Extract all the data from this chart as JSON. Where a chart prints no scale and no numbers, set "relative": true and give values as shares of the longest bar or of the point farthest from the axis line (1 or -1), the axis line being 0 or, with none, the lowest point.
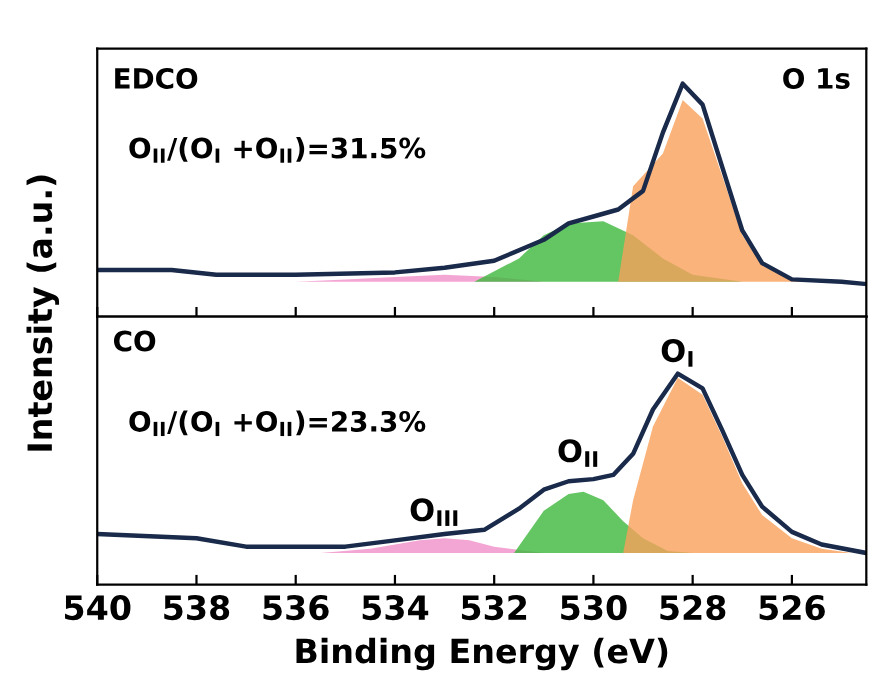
{
  "chart_data": [
    {
      "type": "line",
      "relative": true,
      "ylabel": "Intensity (a.u.)",
      "xlim": [
        540,
        524.5
      ],
      "xticks": [
        540,
        538,
        536,
        534,
        532,
        530,
        528,
        526
      ],
      "tick_labels": false,
      "grid": false,
      "legend": false,
      "annotations": [
        "EDCO",
        "O 1s",
        "O$_{II}$/(O$_{I}$ +O$_{II}$)=31.5%"
      ],
      "series": [
        {
          "type": "area",
          "color": "#f08ec8",
          "x": [
            536,
            535,
            534,
            533,
            532,
            531
          ],
          "values": [
            0.15,
            0.16,
            0.17,
            0.18,
            0.17,
            0.15
          ]
        },
        {
          "type": "area",
          "color": "#3cb83c",
          "x": [
            532.4,
            531.5,
            531,
            530.5,
            529.8,
            529.2,
            528.6,
            528,
            527
          ],
          "values": [
            0.15,
            0.25,
            0.35,
            0.4,
            0.41,
            0.35,
            0.25,
            0.18,
            0.15
          ]
        },
        {
          "type": "area",
          "color": "#f7a05a",
          "x": [
            529.5,
            529.2,
            528.6,
            528.2,
            527.8,
            527.4,
            527,
            526.6,
            526,
            525.4
          ],
          "values": [
            0.15,
            0.56,
            0.7,
            0.93,
            0.85,
            0.6,
            0.35,
            0.22,
            0.16,
            0.15
          ]
        },
        {
          "color": "#1a2a4a",
          "x": [
            540,
            538.5,
            537.6,
            536,
            534,
            533,
            532,
            531,
            530.5,
            530,
            529.5,
            529,
            528.6,
            528.2,
            527.8,
            527.4,
            527,
            526.6,
            526,
            525,
            524.5
          ],
          "values": [
            0.2,
            0.2,
            0.18,
            0.18,
            0.19,
            0.21,
            0.24,
            0.33,
            0.4,
            0.43,
            0.46,
            0.54,
            0.79,
            1.0,
            0.91,
            0.64,
            0.37,
            0.23,
            0.16,
            0.15,
            0.14
          ]
        }
      ]
    },
    {
      "type": "line",
      "relative": true,
      "xlabel": "Binding Energy (eV)",
      "xlim": [
        540,
        524.5
      ],
      "xticks": [
        540,
        538,
        536,
        534,
        532,
        530,
        528,
        526
      ],
      "tick_labels": "x",
      "grid": false,
      "legend": false,
      "annotations": [
        "CO",
        "O$_{II}$/(O$_{I}$ +O$_{II}$)=23.3%",
        {
          "text": "O$_{I}$",
          "x": 528.3,
          "y": 1.0
        },
        {
          "text": "O$_{II}$",
          "x": 530.3,
          "y": 0.5
        },
        {
          "text": "O$_{III}$",
          "x": 533.2,
          "y": 0.22
        }
      ],
      "series": [
        {
          "type": "area",
          "color": "#f08ec8",
          "x": [
            535.5,
            534.5,
            533.5,
            533,
            532.5,
            532,
            531
          ],
          "values": [
            0.15,
            0.17,
            0.21,
            0.22,
            0.21,
            0.18,
            0.15
          ]
        },
        {
          "type": "area",
          "color": "#3cb83c",
          "x": [
            531.6,
            531,
            530.5,
            530.2,
            529.8,
            529.4,
            529,
            528.5,
            528
          ],
          "values": [
            0.15,
            0.35,
            0.43,
            0.44,
            0.4,
            0.3,
            0.22,
            0.16,
            0.15
          ]
        },
        {
          "type": "area",
          "color": "#f7a05a",
          "x": [
            529.4,
            529.2,
            528.8,
            528.3,
            527.8,
            527.4,
            527,
            526.6,
            526,
            525.4,
            524.8
          ],
          "values": [
            0.15,
            0.4,
            0.75,
            0.98,
            0.9,
            0.7,
            0.48,
            0.33,
            0.22,
            0.17,
            0.15
          ]
        },
        {
          "color": "#1a2a4a",
          "x": [
            540,
            538,
            537,
            535,
            534,
            533,
            532.2,
            531.5,
            531,
            530.5,
            530,
            529.6,
            529.2,
            528.8,
            528.3,
            527.8,
            527.4,
            527,
            526.6,
            526,
            525.4,
            524.5
          ],
          "values": [
            0.24,
            0.22,
            0.18,
            0.18,
            0.21,
            0.24,
            0.26,
            0.36,
            0.45,
            0.49,
            0.5,
            0.52,
            0.62,
            0.83,
            1.0,
            0.93,
            0.73,
            0.52,
            0.37,
            0.25,
            0.19,
            0.15
          ]
        }
      ]
    }
  ]
}
